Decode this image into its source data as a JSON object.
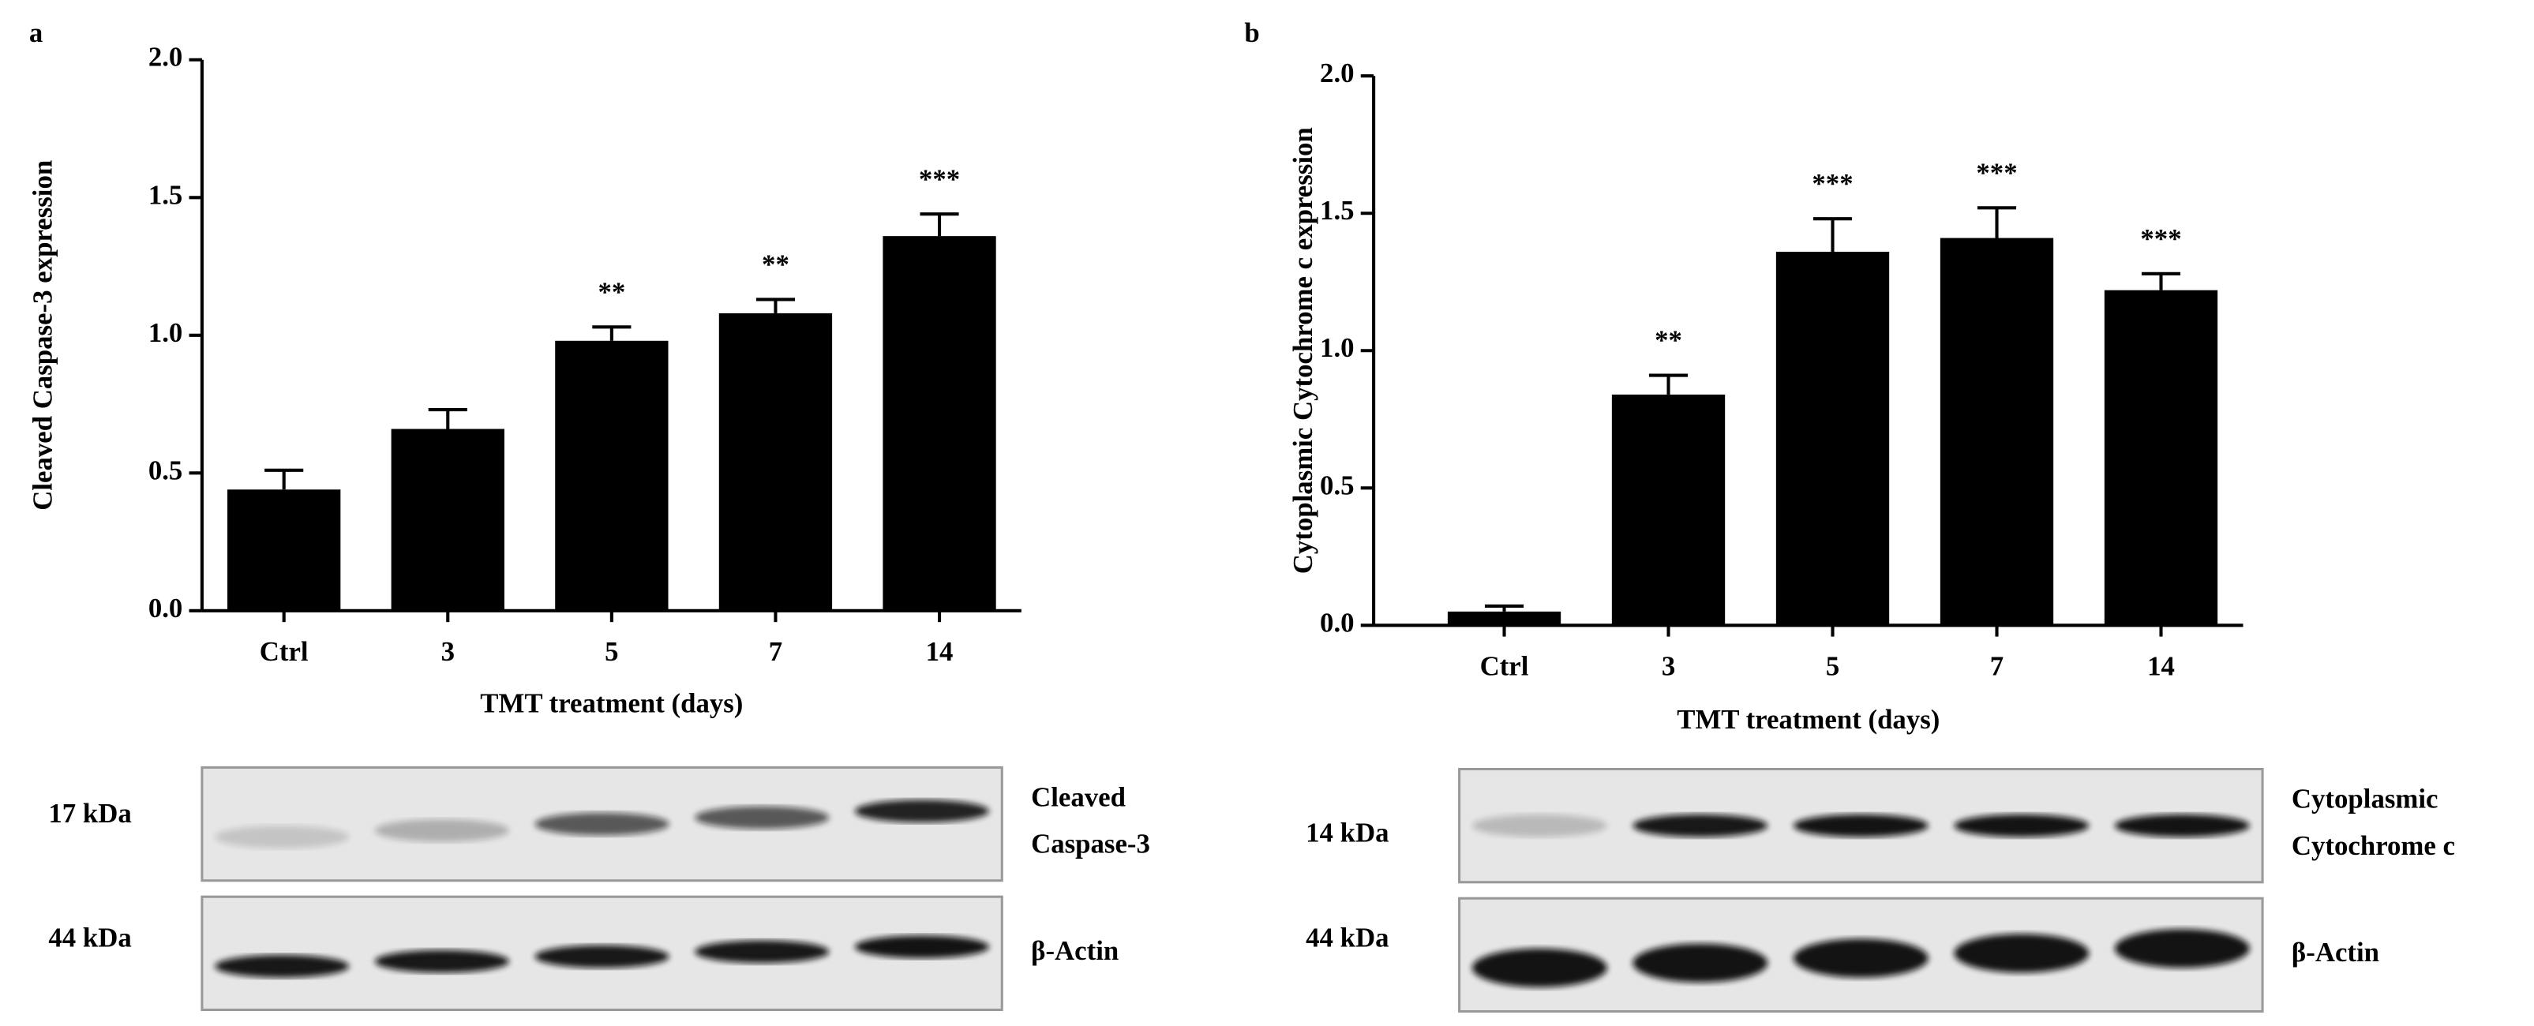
{
  "chart_data": [
    {
      "type": "bar",
      "panel": "a",
      "ylabel": "Cleaved Caspase-3 expression",
      "xlabel": "TMT treatment (days)",
      "categories": [
        "Ctrl",
        "3",
        "5",
        "7",
        "14"
      ],
      "values": [
        0.44,
        0.66,
        0.98,
        1.08,
        1.36
      ],
      "errors": [
        0.07,
        0.07,
        0.05,
        0.05,
        0.08
      ],
      "annotations": [
        null,
        null,
        "**",
        "**",
        "***"
      ],
      "color": "#000000",
      "ylim": [
        0,
        2
      ],
      "yticks": [
        {
          "value": 0,
          "label": "0.0"
        },
        {
          "value": 0.5,
          "label": "0.5"
        },
        {
          "value": 1,
          "label": "1.0"
        },
        {
          "value": 1.5,
          "label": "1.5"
        },
        {
          "value": 2,
          "label": "2.0"
        }
      ],
      "blots": [
        {
          "size": "17 kDa",
          "label": [
            "Cleaved",
            "Caspase-3"
          ]
        },
        {
          "size": "44 kDa",
          "label": [
            "β-Actin"
          ]
        }
      ]
    },
    {
      "type": "bar",
      "panel": "b",
      "ylabel": "Cytoplasmic Cytochrome c expression",
      "xlabel": "TMT treatment (days)",
      "categories": [
        "Ctrl",
        "3",
        "5",
        "7",
        "14"
      ],
      "values": [
        0.05,
        0.84,
        1.36,
        1.41,
        1.22
      ],
      "errors": [
        0.02,
        0.07,
        0.12,
        0.11,
        0.06
      ],
      "annotations": [
        null,
        "**",
        "***",
        "***",
        "***"
      ],
      "color": "#000000",
      "ylim": [
        0,
        2
      ],
      "yticks": [
        {
          "value": 0,
          "label": "0.0"
        },
        {
          "value": 0.5,
          "label": "0.5"
        },
        {
          "value": 1,
          "label": "1.0"
        },
        {
          "value": 1.5,
          "label": "1.5"
        },
        {
          "value": 2,
          "label": "2.0"
        }
      ],
      "blots": [
        {
          "size": "14 kDa",
          "label": [
            "Cytoplasmic",
            "Cytochrome c"
          ]
        },
        {
          "size": "44 kDa",
          "label": [
            "β-Actin"
          ]
        }
      ]
    }
  ]
}
